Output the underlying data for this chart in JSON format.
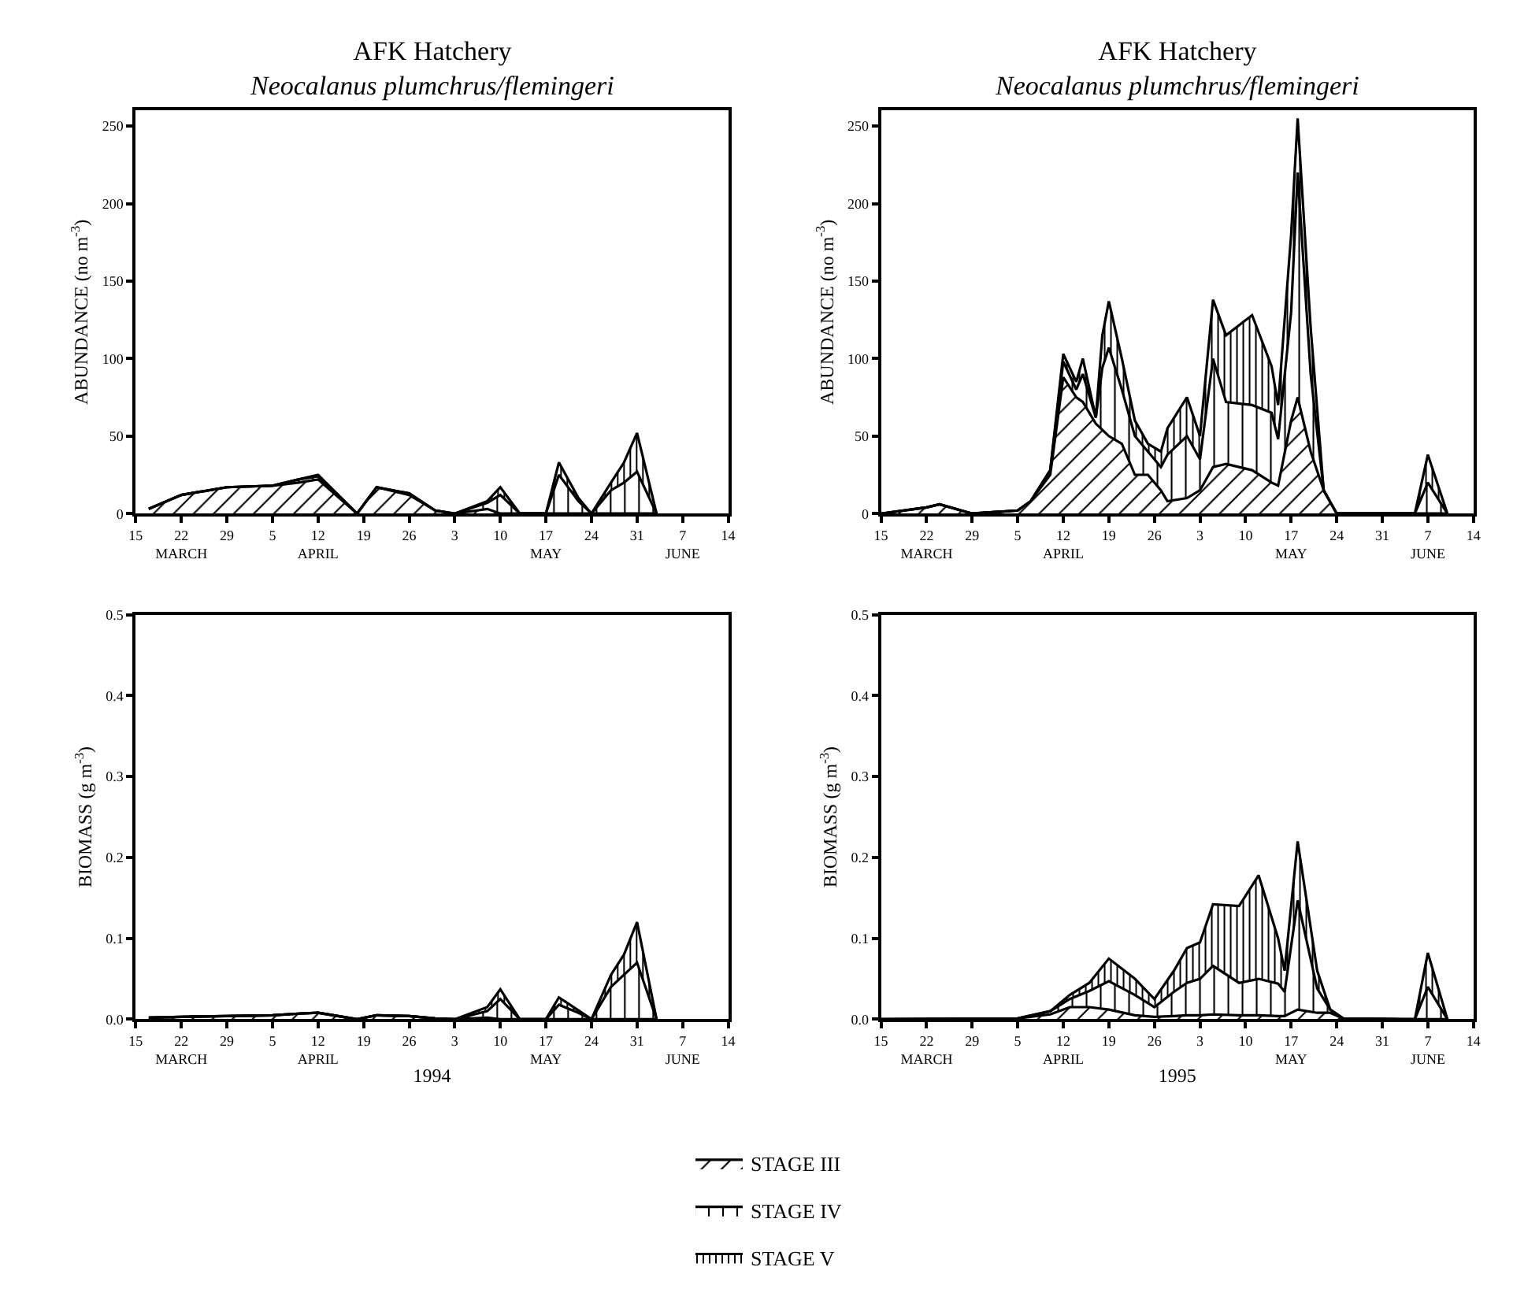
{
  "chart_data": [
    {
      "type": "area",
      "stacked": true,
      "legend": "bottom",
      "title": "AFK Hatchery",
      "subtitle": "Neocalanus plumchrus/flemingeri",
      "ylabel": "ABUNDANCE (no m$^{-3}$)",
      "x": [
        "1994-03-17",
        "1994-03-22",
        "1994-03-29",
        "1994-04-05",
        "1994-04-09",
        "1994-04-12",
        "1994-04-18",
        "1994-04-21",
        "1994-04-26",
        "1994-04-30",
        "1994-05-03",
        "1994-05-08",
        "1994-05-10",
        "1994-05-13",
        "1994-05-17",
        "1994-05-19",
        "1994-05-22",
        "1994-05-24",
        "1994-05-27",
        "1994-05-29",
        "1994-05-31",
        "1994-06-03"
      ],
      "series": [
        {
          "name": "STAGE III",
          "color": "#000000",
          "values": [
            3,
            12,
            17,
            18,
            20,
            22,
            0,
            17,
            12,
            2,
            0,
            3,
            0,
            0,
            0,
            0,
            0,
            0,
            0,
            0,
            0,
            0
          ]
        },
        {
          "name": "STAGE IV",
          "color": "#000000",
          "values": [
            0,
            0,
            0,
            0,
            2,
            2,
            0,
            0,
            1,
            0,
            0,
            4,
            12,
            0,
            0,
            25,
            8,
            0,
            15,
            20,
            27,
            0
          ]
        },
        {
          "name": "STAGE V",
          "color": "#000000",
          "values": [
            0,
            0,
            0,
            0,
            0,
            1,
            0,
            0,
            0,
            0,
            0,
            1,
            5,
            0,
            0,
            8,
            2,
            0,
            5,
            13,
            25,
            0
          ]
        }
      ],
      "xlim": [
        "1994-03-15",
        "1994-06-14"
      ],
      "xticks": [
        {
          "value": "1994-03-15",
          "label": "15"
        },
        {
          "value": "1994-03-22",
          "label": "22\nMARCH"
        },
        {
          "value": "1994-03-29",
          "label": "29"
        },
        {
          "value": "1994-04-05",
          "label": "5"
        },
        {
          "value": "1994-04-12",
          "label": "12\nAPRIL"
        },
        {
          "value": "1994-04-19",
          "label": "19"
        },
        {
          "value": "1994-04-26",
          "label": "26"
        },
        {
          "value": "1994-05-03",
          "label": "3"
        },
        {
          "value": "1994-05-10",
          "label": "10"
        },
        {
          "value": "1994-05-17",
          "label": "17\nMAY"
        },
        {
          "value": "1994-05-24",
          "label": "24"
        },
        {
          "value": "1994-05-31",
          "label": "31"
        },
        {
          "value": "1994-06-07",
          "label": "7\nJUNE"
        },
        {
          "value": "1994-06-14",
          "label": "14"
        }
      ],
      "ylim": [
        0,
        260
      ],
      "yticks": [
        0,
        50,
        100,
        150,
        200,
        250
      ]
    },
    {
      "type": "area",
      "stacked": true,
      "title": "AFK Hatchery",
      "subtitle": "Neocalanus plumchrus/flemingeri",
      "ylabel": "ABUNDANCE (no m$^{-3}$)",
      "x": [
        "1995-03-15",
        "1995-03-22",
        "1995-03-24",
        "1995-03-29",
        "1995-04-05",
        "1995-04-07",
        "1995-04-10",
        "1995-04-12",
        "1995-04-14",
        "1995-04-15",
        "1995-04-17",
        "1995-04-18",
        "1995-04-19",
        "1995-04-21",
        "1995-04-23",
        "1995-04-25",
        "1995-04-27",
        "1995-04-28",
        "1995-05-01",
        "1995-05-03",
        "1995-05-05",
        "1995-05-07",
        "1995-05-11",
        "1995-05-14",
        "1995-05-15",
        "1995-05-17",
        "1995-05-18",
        "1995-05-20",
        "1995-05-22",
        "1995-05-24",
        "1995-06-05",
        "1995-06-07",
        "1995-06-10"
      ],
      "series": [
        {
          "color": "#000000",
          "values": [
            0,
            4,
            6,
            0,
            2,
            8,
            25,
            88,
            75,
            72,
            58,
            54,
            50,
            45,
            25,
            25,
            15,
            8,
            10,
            15,
            30,
            32,
            28,
            20,
            18,
            60,
            75,
            40,
            15,
            0,
            0,
            0,
            0
          ]
        },
        {
          "color": "#000000",
          "values": [
            0,
            0,
            0,
            0,
            0,
            0,
            3,
            10,
            5,
            18,
            4,
            40,
            57,
            35,
            25,
            15,
            15,
            30,
            40,
            20,
            70,
            40,
            42,
            45,
            30,
            70,
            145,
            50,
            0,
            0,
            0,
            20,
            0
          ]
        },
        {
          "color": "#000000",
          "values": [
            0,
            0,
            0,
            0,
            0,
            0,
            0,
            5,
            5,
            10,
            0,
            21,
            30,
            20,
            10,
            5,
            10,
            17,
            25,
            15,
            38,
            43,
            58,
            30,
            22,
            50,
            35,
            30,
            0,
            0,
            0,
            18,
            0
          ]
        }
      ],
      "xlim": [
        "1995-03-15",
        "1995-06-14"
      ],
      "xticks": [
        {
          "value": "1995-03-15",
          "label": "15"
        },
        {
          "value": "1995-03-22",
          "label": "22\nMARCH"
        },
        {
          "value": "1995-03-29",
          "label": "29"
        },
        {
          "value": "1995-04-05",
          "label": "5"
        },
        {
          "value": "1995-04-12",
          "label": "12\nAPRIL"
        },
        {
          "value": "1995-04-19",
          "label": "19"
        },
        {
          "value": "1995-04-26",
          "label": "26"
        },
        {
          "value": "1995-05-03",
          "label": "3"
        },
        {
          "value": "1995-05-10",
          "label": "10"
        },
        {
          "value": "1995-05-17",
          "label": "17\nMAY"
        },
        {
          "value": "1995-05-24",
          "label": "24"
        },
        {
          "value": "1995-05-31",
          "label": "31"
        },
        {
          "value": "1995-06-07",
          "label": "7\nJUNE"
        },
        {
          "value": "1995-06-14",
          "label": "14"
        }
      ],
      "ylim": [
        0,
        260
      ],
      "yticks": [
        0,
        50,
        100,
        150,
        200,
        250
      ]
    },
    {
      "type": "area",
      "stacked": true,
      "ylabel": "BIOMASS (g m$^{-3}$)",
      "xlabel": "1994",
      "x": [
        "1994-03-17",
        "1994-03-22",
        "1994-03-29",
        "1994-04-05",
        "1994-04-09",
        "1994-04-12",
        "1994-04-18",
        "1994-04-21",
        "1994-04-26",
        "1994-04-30",
        "1994-05-03",
        "1994-05-08",
        "1994-05-10",
        "1994-05-13",
        "1994-05-17",
        "1994-05-19",
        "1994-05-22",
        "1994-05-24",
        "1994-05-27",
        "1994-05-29",
        "1994-05-31",
        "1994-06-03"
      ],
      "series": [
        {
          "color": "#000000",
          "values": [
            0.002,
            0.003,
            0.004,
            0.005,
            0.007,
            0.008,
            0,
            0.005,
            0.004,
            0.001,
            0,
            0.002,
            0,
            0,
            0,
            0,
            0,
            0,
            0,
            0,
            0,
            0
          ]
        },
        {
          "color": "#000000",
          "values": [
            0,
            0,
            0,
            0,
            0,
            0,
            0,
            0,
            0,
            0,
            0,
            0.008,
            0.025,
            0,
            0,
            0.018,
            0.008,
            0,
            0.04,
            0.055,
            0.07,
            0
          ]
        },
        {
          "color": "#000000",
          "values": [
            0,
            0,
            0,
            0,
            0,
            0,
            0,
            0,
            0,
            0,
            0,
            0.005,
            0.012,
            0,
            0,
            0.009,
            0.003,
            0,
            0.015,
            0.025,
            0.05,
            0
          ]
        }
      ],
      "xlim": [
        "1994-03-15",
        "1994-06-14"
      ],
      "xticks": [
        {
          "value": "1994-03-15",
          "label": "15"
        },
        {
          "value": "1994-03-22",
          "label": "22\nMARCH"
        },
        {
          "value": "1994-03-29",
          "label": "29"
        },
        {
          "value": "1994-04-05",
          "label": "5"
        },
        {
          "value": "1994-04-12",
          "label": "12\nAPRIL"
        },
        {
          "value": "1994-04-19",
          "label": "19"
        },
        {
          "value": "1994-04-26",
          "label": "26"
        },
        {
          "value": "1994-05-03",
          "label": "3"
        },
        {
          "value": "1994-05-10",
          "label": "10"
        },
        {
          "value": "1994-05-17",
          "label": "17\nMAY"
        },
        {
          "value": "1994-05-24",
          "label": "24"
        },
        {
          "value": "1994-05-31",
          "label": "31"
        },
        {
          "value": "1994-06-07",
          "label": "7\nJUNE"
        },
        {
          "value": "1994-06-14",
          "label": "14"
        }
      ],
      "ylim": [
        0,
        0.5
      ],
      "yticks": [
        {
          "value": 0,
          "label": "0.0"
        },
        0.1,
        0.2,
        0.3,
        0.4,
        0.5
      ]
    },
    {
      "type": "area",
      "stacked": true,
      "ylabel": "BIOMASS (g m$^{-3}$)",
      "xlabel": "1995",
      "x": [
        "1995-03-15",
        "1995-04-05",
        "1995-04-10",
        "1995-04-13",
        "1995-04-16",
        "1995-04-19",
        "1995-04-23",
        "1995-04-26",
        "1995-04-29",
        "1995-05-01",
        "1995-05-03",
        "1995-05-05",
        "1995-05-09",
        "1995-05-12",
        "1995-05-15",
        "1995-05-16",
        "1995-05-18",
        "1995-05-21",
        "1995-05-23",
        "1995-05-25",
        "1995-06-05",
        "1995-06-07",
        "1995-06-10"
      ],
      "series": [
        {
          "color": "#000000",
          "values": [
            0,
            0.001,
            0.006,
            0.015,
            0.015,
            0.012,
            0.005,
            0.003,
            0.004,
            0.005,
            0.005,
            0.006,
            0.005,
            0.005,
            0.004,
            0.004,
            0.012,
            0.008,
            0.008,
            0.001,
            0,
            0,
            0
          ]
        },
        {
          "color": "#000000",
          "values": [
            0,
            0,
            0.004,
            0.01,
            0.02,
            0.035,
            0.025,
            0.012,
            0.03,
            0.04,
            0.045,
            0.06,
            0.04,
            0.045,
            0.04,
            0.03,
            0.135,
            0.03,
            0.004,
            0,
            0,
            0.04,
            0
          ]
        },
        {
          "color": "#000000",
          "values": [
            0,
            0,
            0,
            0.005,
            0.01,
            0.028,
            0.02,
            0.01,
            0.026,
            0.043,
            0.045,
            0.076,
            0.095,
            0.128,
            0.056,
            0.026,
            0.073,
            0.022,
            0,
            0,
            0,
            0.042,
            0
          ]
        }
      ],
      "xlim": [
        "1995-03-15",
        "1995-06-14"
      ],
      "xticks": [
        {
          "value": "1995-03-15",
          "label": "15"
        },
        {
          "value": "1995-03-22",
          "label": "22\nMARCH"
        },
        {
          "value": "1995-03-29",
          "label": "29"
        },
        {
          "value": "1995-04-05",
          "label": "5"
        },
        {
          "value": "1995-04-12",
          "label": "12\nAPRIL"
        },
        {
          "value": "1995-04-19",
          "label": "19"
        },
        {
          "value": "1995-04-26",
          "label": "26"
        },
        {
          "value": "1995-05-03",
          "label": "3"
        },
        {
          "value": "1995-05-10",
          "label": "10"
        },
        {
          "value": "1995-05-17",
          "label": "17\nMAY"
        },
        {
          "value": "1995-05-24",
          "label": "24"
        },
        {
          "value": "1995-05-31",
          "label": "31"
        },
        {
          "value": "1995-06-07",
          "label": "7\nJUNE"
        },
        {
          "value": "1995-06-14",
          "label": "14"
        }
      ],
      "ylim": [
        0,
        0.5
      ],
      "yticks": [
        {
          "value": 0,
          "label": "0.0"
        },
        0.1,
        0.2,
        0.3,
        0.4,
        0.5
      ]
    }
  ]
}
